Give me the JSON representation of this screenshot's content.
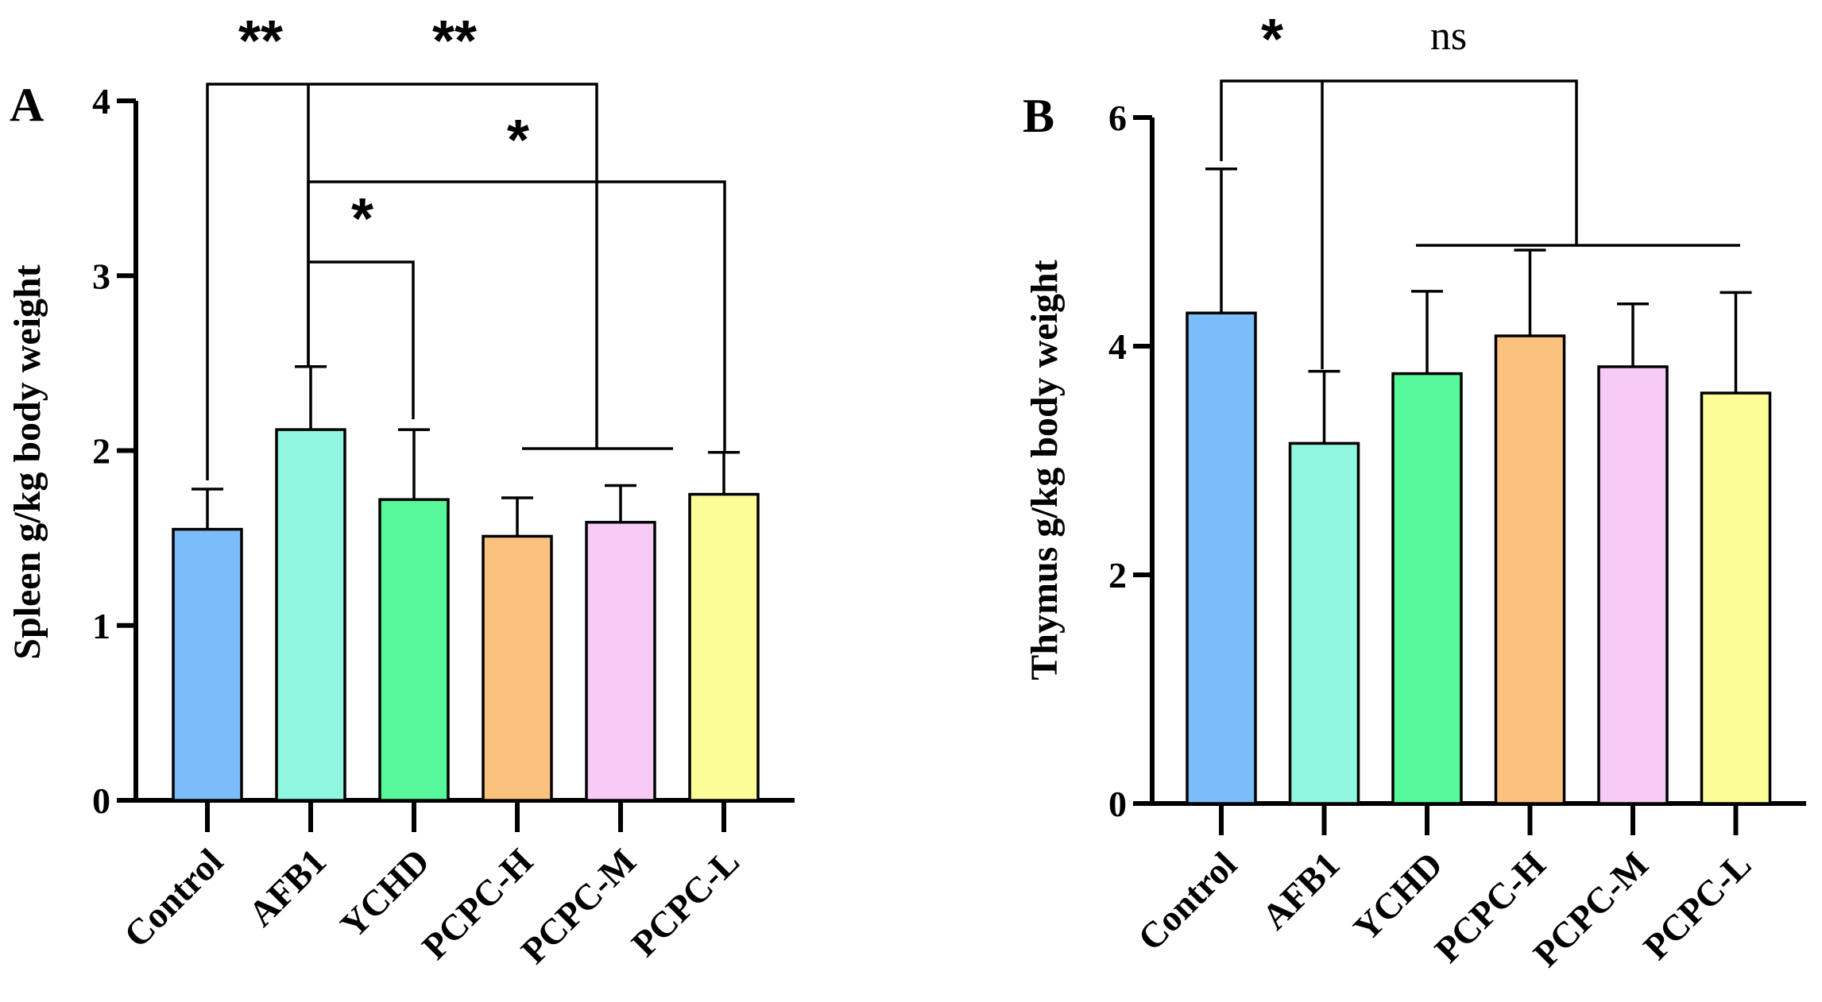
{
  "chart_data": [
    {
      "panel_label": "A",
      "type": "bar",
      "ylabel": "Spleen g/kg body weight",
      "ylim": [
        0,
        4
      ],
      "yticks": [
        "0",
        "1",
        "2",
        "3",
        "4"
      ],
      "categories": [
        "Control",
        "AFB1",
        "YCHD",
        "PCPC-H",
        "PCPC-M",
        "PCPC-L"
      ],
      "values": [
        1.55,
        2.12,
        1.72,
        1.51,
        1.59,
        1.75
      ],
      "errors": [
        0.23,
        0.36,
        0.4,
        0.22,
        0.21,
        0.24
      ],
      "colors": [
        "#7bbcfb",
        "#8ff6df",
        "#56f89a",
        "#fbc27d",
        "#f8cbf6",
        "#fdfd98"
      ],
      "significance": [
        {
          "from": "Control",
          "to": "AFB1",
          "label": "**"
        },
        {
          "from": "AFB1",
          "to": "PCPC-H, PCPC-M",
          "label": "**"
        },
        {
          "from": "AFB1",
          "to": "PCPC-L",
          "label": "*"
        },
        {
          "from": "AFB1",
          "to": "YCHD",
          "label": "*"
        }
      ]
    },
    {
      "panel_label": "B",
      "type": "bar",
      "ylabel": "Thymus g/kg body weight",
      "ylim": [
        0,
        6
      ],
      "yticks": [
        "0",
        "2",
        "4",
        "6"
      ],
      "categories": [
        "Control",
        "AFB1",
        "YCHD",
        "PCPC-H",
        "PCPC-M",
        "PCPC-L"
      ],
      "values": [
        4.29,
        3.15,
        3.76,
        4.09,
        3.82,
        3.59
      ],
      "errors": [
        1.26,
        0.63,
        0.72,
        0.75,
        0.55,
        0.88
      ],
      "colors": [
        "#7bbcfb",
        "#8ff6df",
        "#56f89a",
        "#fbc27d",
        "#f8cbf6",
        "#fdfd98"
      ],
      "significance": [
        {
          "from": "Control",
          "to": "AFB1",
          "label": "*"
        },
        {
          "from": "Control",
          "to": "YCHD, PCPC-H, PCPC-M, PCPC-L",
          "label": "ns"
        }
      ]
    }
  ]
}
